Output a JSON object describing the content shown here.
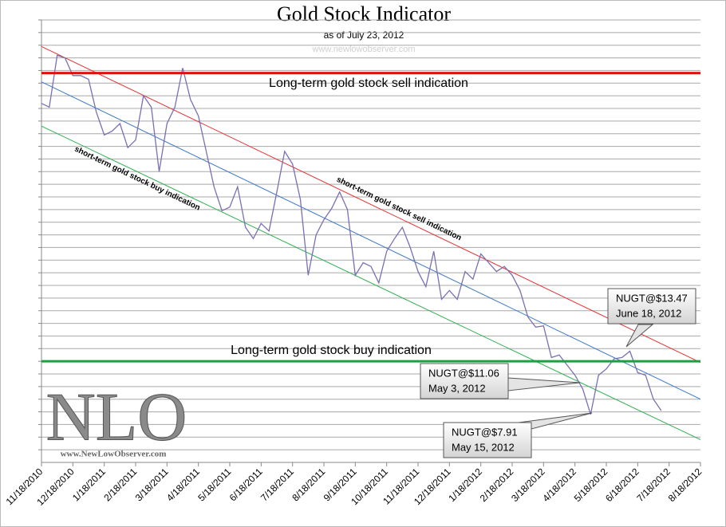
{
  "chart_data": {
    "type": "line",
    "title": "Gold Stock Indicator",
    "subtitle": "as of July 23, 2012",
    "watermark": "www.newlowobserver.com",
    "logo": {
      "text": "NLO",
      "url": "www.NewLowObserver.com"
    },
    "xlim": [
      0,
      21
    ],
    "xticks": [
      {
        "value": 0,
        "label": "11/18/2010"
      },
      {
        "value": 1,
        "label": "12/18/2010"
      },
      {
        "value": 2,
        "label": "1/18/2011"
      },
      {
        "value": 3,
        "label": "2/18/2011"
      },
      {
        "value": 4,
        "label": "3/18/2011"
      },
      {
        "value": 5,
        "label": "4/18/2011"
      },
      {
        "value": 6,
        "label": "5/18/2011"
      },
      {
        "value": 7,
        "label": "6/18/2011"
      },
      {
        "value": 8,
        "label": "7/18/2011"
      },
      {
        "value": 9,
        "label": "8/18/2011"
      },
      {
        "value": 10,
        "label": "9/18/2011"
      },
      {
        "value": 11,
        "label": "10/18/2011"
      },
      {
        "value": 12,
        "label": "11/18/2011"
      },
      {
        "value": 13,
        "label": "12/18/2011"
      },
      {
        "value": 14,
        "label": "1/18/2012"
      },
      {
        "value": 15,
        "label": "2/18/2012"
      },
      {
        "value": 16,
        "label": "3/18/2012"
      },
      {
        "value": 17,
        "label": "4/18/2012"
      },
      {
        "value": 18,
        "label": "5/18/2012"
      },
      {
        "value": 19,
        "label": "6/18/2012"
      },
      {
        "value": 20,
        "label": "7/18/2012"
      },
      {
        "value": 21,
        "label": "8/18/2012"
      }
    ],
    "ylim": [
      0,
      35
    ],
    "yticks": [
      1,
      2,
      3,
      4,
      5,
      6,
      7,
      8,
      9,
      10,
      11,
      12,
      13,
      14,
      15,
      16,
      17,
      18,
      19,
      20,
      21,
      22,
      23,
      24,
      25,
      26,
      27,
      28,
      29,
      30,
      31,
      32,
      33,
      34,
      35
    ],
    "grid": true,
    "x": [
      0,
      0.25,
      0.5,
      0.75,
      1,
      1.25,
      1.5,
      1.75,
      2,
      2.25,
      2.5,
      2.75,
      3,
      3.25,
      3.5,
      3.75,
      4,
      4.25,
      4.5,
      4.75,
      5,
      5.25,
      5.5,
      5.75,
      6,
      6.25,
      6.5,
      6.75,
      7,
      7.25,
      7.5,
      7.75,
      8,
      8.25,
      8.5,
      8.75,
      9,
      9.25,
      9.5,
      9.75,
      10,
      10.25,
      10.5,
      10.75,
      11,
      11.25,
      11.5,
      11.75,
      12,
      12.25,
      12.5,
      12.75,
      13,
      13.25,
      13.5,
      13.75,
      14,
      14.25,
      14.5,
      14.75,
      15,
      15.25,
      15.5,
      15.75,
      16,
      16.25,
      16.5,
      16.75,
      17,
      17.25,
      17.5,
      17.75,
      18,
      18.25,
      18.5,
      18.75,
      19,
      19.25,
      19.5,
      19.75
    ],
    "series": [
      {
        "color": "#7b6fb3",
        "values": [
          28.4,
          28.1,
          32.2,
          32.0,
          30.6,
          30.6,
          30.3,
          27.7,
          25.9,
          26.2,
          26.8,
          24.9,
          25.5,
          29.0,
          28.1,
          23.0,
          26.8,
          28.1,
          31.2,
          28.7,
          27.4,
          24.6,
          21.8,
          19.9,
          20.2,
          21.8,
          18.6,
          17.7,
          18.9,
          18.3,
          21.4,
          24.6,
          23.6,
          20.8,
          14.8,
          18.0,
          19.2,
          20.1,
          21.4,
          20.0,
          14.8,
          15.8,
          15.5,
          14.2,
          16.7,
          17.7,
          18.6,
          17.0,
          15.1,
          13.9,
          16.7,
          12.9,
          13.6,
          12.9,
          15.1,
          14.5,
          16.5,
          15.8,
          15.1,
          15.5,
          14.8,
          13.6,
          11.5,
          10.7,
          10.8,
          8.3,
          8.5,
          7.7,
          6.9,
          5.8,
          3.8,
          6.9,
          7.4,
          8.2,
          8.3,
          8.8,
          7.1,
          6.9,
          5.0,
          4.1
        ]
      }
    ],
    "ref_lines": [
      {
        "value": 30.8,
        "color": "#e01010",
        "label": "Long-term gold stock sell indication"
      },
      {
        "value": 8.0,
        "color": "#1aa040",
        "label": "Long-term gold stock buy indication"
      }
    ],
    "trend_lines": [
      {
        "color": "#e83030",
        "x": [
          0,
          21
        ],
        "values": [
          32.9,
          7.9
        ]
      },
      {
        "color": "#3a78c8",
        "x": [
          0,
          21
        ],
        "values": [
          30.1,
          5.0
        ]
      },
      {
        "color": "#2db050",
        "x": [
          0,
          21
        ],
        "values": [
          26.6,
          1.8
        ]
      }
    ],
    "trend_labels": [
      "short-term gold stock sell indication",
      "short-term gold stock buy indication"
    ],
    "callouts": [
      [
        "NUGT@$13.47",
        "June 18, 2012"
      ],
      [
        "NUGT@$11.06",
        "May 3, 2012"
      ],
      [
        "NUGT@$7.91",
        "May 15, 2012"
      ]
    ]
  }
}
